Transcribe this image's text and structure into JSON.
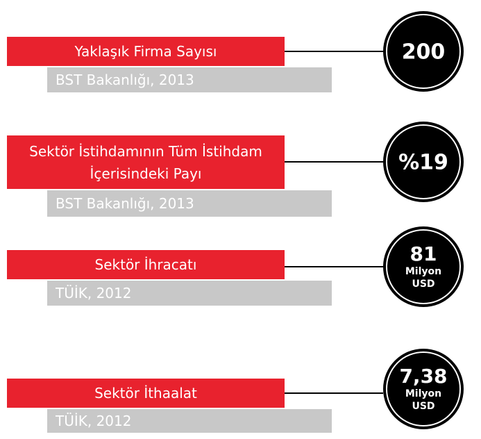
{
  "items": [
    {
      "label": "Yaklaşık Firma Sayısı",
      "source": "BST Bakanlığı, 2013",
      "value": "200"
    },
    {
      "label": "Sektör İstihdamının Tüm İstihdam İçerisindeki Payı",
      "source": "BST Bakanlığı, 2013",
      "value": "%19"
    },
    {
      "label": "Sektör İhracatı",
      "source": "TÜİK, 2012",
      "value": "81",
      "unit": [
        "Milyon",
        "USD"
      ]
    },
    {
      "label": "Sektör İthaalat",
      "source": "TÜİK, 2012",
      "value": "7,38",
      "unit": [
        "Milyon",
        "USD"
      ]
    }
  ]
}
